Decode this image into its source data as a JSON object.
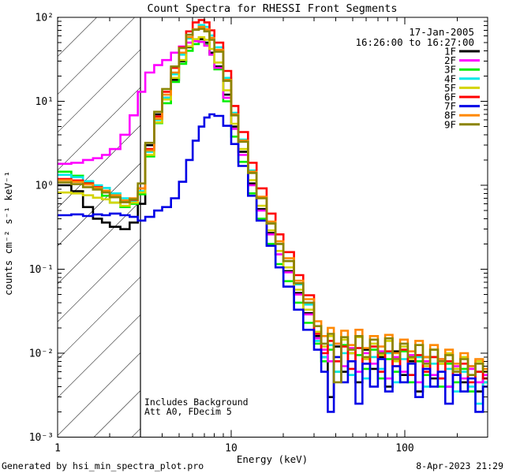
{
  "header": {
    "date": "17-Jan-2005",
    "time_range": "16:26:00 to 16:27:00"
  },
  "annotations": {
    "line1": "Includes Background",
    "line2": "Att A0, FDecim 5"
  },
  "footer": {
    "left": "Generated by hsi_min_spectra_plot.pro",
    "right": "8-Apr-2023 21:29"
  },
  "chart_data": {
    "type": "line",
    "subtype": "log-log step histogram spectra",
    "title": "Count Spectra for RHESSI Front Segments",
    "xlabel": "Energy (keV)",
    "ylabel": "counts cm⁻² s⁻¹ keV⁻¹",
    "xlim": [
      1,
      300
    ],
    "ylim": [
      0.001,
      100
    ],
    "x_major_ticks": [
      1,
      10,
      100
    ],
    "x_tick_labels": [
      "1",
      "10",
      "100"
    ],
    "y_major_ticks": [
      100,
      10,
      1,
      0.1,
      0.01,
      0.001
    ],
    "y_tick_labels": [
      "10²",
      "10¹",
      "10⁰",
      "10⁻¹",
      "10⁻²",
      "10⁻³"
    ],
    "grid": false,
    "legend_position": "upper right",
    "hatch_region_kev": [
      1,
      3
    ],
    "bin_edges_kev": [
      1.0,
      1.2,
      1.4,
      1.6,
      1.8,
      2.0,
      2.3,
      2.6,
      2.9,
      3.2,
      3.6,
      4.0,
      4.5,
      5.0,
      5.5,
      6.0,
      6.5,
      7.0,
      7.5,
      8.0,
      9.0,
      10,
      11,
      12.5,
      14,
      16,
      18,
      20,
      23,
      26,
      30,
      33,
      36,
      39,
      43,
      47,
      52,
      57,
      63,
      70,
      77,
      85,
      94,
      104,
      115,
      127,
      140,
      155,
      171,
      189,
      209,
      231,
      255,
      282,
      300
    ],
    "series": [
      {
        "name": "1F",
        "color": "#000000",
        "values": [
          1.0,
          0.85,
          0.55,
          0.4,
          0.36,
          0.32,
          0.3,
          0.36,
          0.6,
          3.0,
          7.0,
          11,
          18,
          30,
          44,
          53,
          55,
          50,
          38,
          26,
          12,
          5.0,
          2.5,
          1.05,
          0.52,
          0.27,
          0.15,
          0.095,
          0.052,
          0.03,
          0.016,
          0.009,
          0.003,
          0.012,
          0.006,
          0.01,
          0.0045,
          0.011,
          0.0065,
          0.009,
          0.004,
          0.0105,
          0.0055,
          0.008,
          0.0035,
          0.009,
          0.005,
          0.0075,
          0.004,
          0.0065,
          0.0045,
          0.007,
          0.0035,
          0.005
        ]
      },
      {
        "name": "2F",
        "color": "#ff00ff",
        "values": [
          1.8,
          1.85,
          2.0,
          2.1,
          2.3,
          2.7,
          4.0,
          6.8,
          13,
          22,
          27,
          31,
          38,
          45,
          50,
          52,
          51,
          46,
          36,
          25,
          11,
          4.7,
          2.3,
          1.0,
          0.5,
          0.26,
          0.15,
          0.092,
          0.05,
          0.029,
          0.015,
          0.011,
          0.008,
          0.013,
          0.007,
          0.0115,
          0.006,
          0.01,
          0.0075,
          0.0105,
          0.005,
          0.009,
          0.006,
          0.0095,
          0.0045,
          0.008,
          0.0055,
          0.0085,
          0.004,
          0.007,
          0.005,
          0.0065,
          0.0045,
          0.0055
        ]
      },
      {
        "name": "3F",
        "color": "#00ee00",
        "values": [
          1.45,
          1.3,
          1.1,
          0.9,
          0.75,
          0.62,
          0.55,
          0.6,
          0.78,
          2.2,
          5.5,
          9.5,
          17,
          28,
          40,
          48,
          51,
          47,
          36,
          24,
          10,
          3.8,
          1.9,
          0.8,
          0.4,
          0.2,
          0.115,
          0.072,
          0.04,
          0.023,
          0.013,
          0.008,
          0.011,
          0.006,
          0.0125,
          0.0055,
          0.0095,
          0.0065,
          0.011,
          0.005,
          0.0085,
          0.006,
          0.0105,
          0.0045,
          0.008,
          0.0055,
          0.009,
          0.004,
          0.0075,
          0.0045,
          0.0065,
          0.0035,
          0.006,
          0.0045
        ]
      },
      {
        "name": "4F",
        "color": "#00e8e8",
        "values": [
          1.33,
          1.25,
          1.12,
          1.0,
          0.93,
          0.8,
          0.7,
          0.64,
          0.85,
          2.5,
          6.0,
          11,
          21,
          36,
          56,
          72,
          81,
          77,
          61,
          44,
          19,
          7.3,
          3.5,
          1.5,
          0.72,
          0.36,
          0.2,
          0.125,
          0.066,
          0.038,
          0.014,
          0.009,
          0.0125,
          0.006,
          0.01,
          0.0055,
          0.0115,
          0.005,
          0.009,
          0.0065,
          0.01,
          0.0045,
          0.0085,
          0.0055,
          0.009,
          0.004,
          0.0075,
          0.005,
          0.0065,
          0.0035,
          0.006,
          0.004,
          0.0025,
          0.0045
        ]
      },
      {
        "name": "5F",
        "color": "#d4d400",
        "values": [
          0.82,
          0.8,
          0.76,
          0.71,
          0.68,
          0.62,
          0.57,
          0.62,
          0.82,
          2.3,
          5.6,
          10.5,
          19,
          31,
          45,
          55,
          58,
          54,
          42,
          29,
          13.5,
          5.4,
          2.7,
          1.15,
          0.57,
          0.29,
          0.165,
          0.105,
          0.057,
          0.033,
          0.018,
          0.012,
          0.016,
          0.009,
          0.0145,
          0.01,
          0.0155,
          0.0085,
          0.013,
          0.0095,
          0.014,
          0.008,
          0.012,
          0.0085,
          0.0125,
          0.007,
          0.011,
          0.0075,
          0.01,
          0.0065,
          0.009,
          0.0055,
          0.008,
          0.006
        ]
      },
      {
        "name": "6F",
        "color": "#ff0000",
        "values": [
          1.19,
          1.14,
          1.05,
          0.95,
          0.86,
          0.73,
          0.63,
          0.67,
          0.92,
          2.7,
          6.6,
          13,
          25,
          44,
          68,
          87,
          93,
          87,
          70,
          50,
          23,
          8.8,
          4.3,
          1.85,
          0.92,
          0.46,
          0.26,
          0.16,
          0.085,
          0.049,
          0.017,
          0.01,
          0.014,
          0.008,
          0.012,
          0.0065,
          0.0115,
          0.0075,
          0.012,
          0.006,
          0.0105,
          0.007,
          0.011,
          0.0055,
          0.0095,
          0.006,
          0.009,
          0.005,
          0.008,
          0.0055,
          0.0075,
          0.0045,
          0.006,
          0.005
        ]
      },
      {
        "name": "7F",
        "color": "#0000e6",
        "values": [
          0.44,
          0.45,
          0.43,
          0.45,
          0.44,
          0.46,
          0.44,
          0.42,
          0.38,
          0.42,
          0.5,
          0.55,
          0.7,
          1.1,
          2.0,
          3.4,
          5.0,
          6.4,
          7.0,
          6.7,
          5.1,
          3.1,
          1.7,
          0.75,
          0.38,
          0.19,
          0.105,
          0.062,
          0.033,
          0.019,
          0.011,
          0.006,
          0.002,
          0.009,
          0.0045,
          0.008,
          0.0025,
          0.0075,
          0.004,
          0.0085,
          0.0035,
          0.007,
          0.0045,
          0.0075,
          0.003,
          0.0065,
          0.004,
          0.006,
          0.0025,
          0.0055,
          0.0035,
          0.005,
          0.002,
          0.004
        ]
      },
      {
        "name": "8F",
        "color": "#ff8800",
        "values": [
          1.15,
          1.1,
          1.02,
          0.93,
          0.86,
          0.76,
          0.66,
          0.7,
          0.92,
          2.6,
          6.2,
          12,
          22,
          38,
          58,
          72,
          77,
          72,
          57,
          41,
          18,
          7.0,
          3.4,
          1.45,
          0.73,
          0.37,
          0.215,
          0.135,
          0.073,
          0.044,
          0.024,
          0.016,
          0.02,
          0.013,
          0.0185,
          0.0125,
          0.019,
          0.0115,
          0.016,
          0.012,
          0.0165,
          0.01,
          0.0145,
          0.0105,
          0.014,
          0.009,
          0.0125,
          0.0085,
          0.011,
          0.0075,
          0.01,
          0.007,
          0.0085,
          0.0065
        ]
      },
      {
        "name": "9F",
        "color": "#8b8400",
        "values": [
          1.08,
          1.03,
          0.95,
          0.89,
          0.82,
          0.72,
          0.63,
          0.68,
          1.05,
          3.2,
          7.5,
          14,
          26,
          43,
          62,
          71,
          73,
          68,
          54,
          39,
          17.5,
          6.8,
          3.3,
          1.4,
          0.7,
          0.35,
          0.2,
          0.125,
          0.068,
          0.04,
          0.021,
          0.013,
          0.017,
          0.0045,
          0.0155,
          0.011,
          0.016,
          0.009,
          0.0145,
          0.01,
          0.015,
          0.0085,
          0.013,
          0.009,
          0.0125,
          0.0075,
          0.011,
          0.008,
          0.0095,
          0.006,
          0.0085,
          0.0055,
          0.0075,
          0.006
        ]
      }
    ]
  }
}
